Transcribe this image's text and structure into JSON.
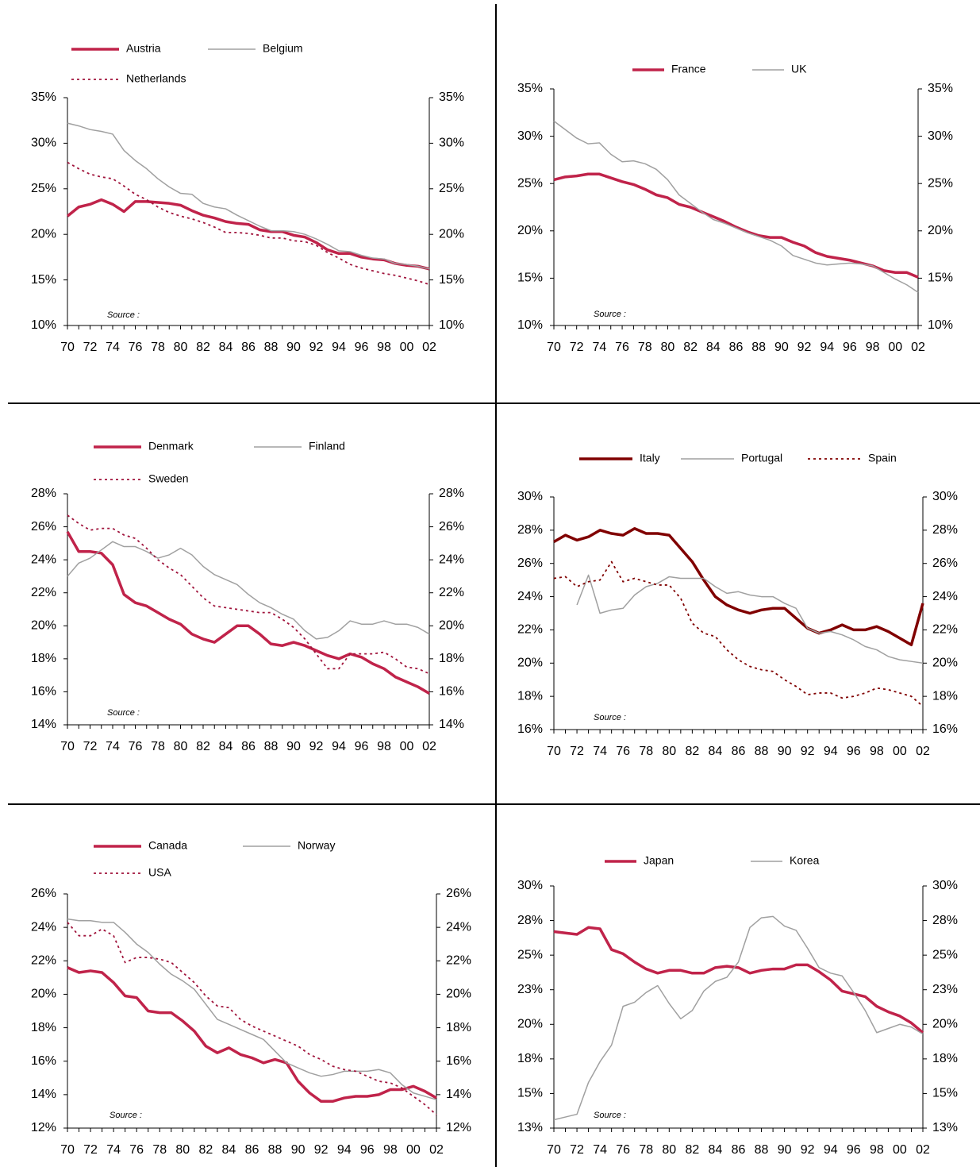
{
  "chart_data": [
    {
      "type": "line",
      "annotation": "Source :",
      "categories": [
        "70",
        null,
        "72",
        null,
        "74",
        null,
        "76",
        null,
        "78",
        null,
        "80",
        null,
        "82",
        null,
        "84",
        null,
        "86",
        null,
        "88",
        null,
        "90",
        null,
        "92",
        null,
        "94",
        null,
        "96",
        null,
        "98",
        null,
        "00",
        null,
        "02"
      ],
      "ylim": [
        10,
        35
      ],
      "yticks": [
        {
          "value": 10,
          "label": "10%"
        },
        {
          "value": 15,
          "label": "15%"
        },
        {
          "value": 20,
          "label": "20%"
        },
        {
          "value": 25,
          "label": "25%"
        },
        {
          "value": 30,
          "label": "30%"
        },
        {
          "value": 35,
          "label": "35%"
        }
      ],
      "series": [
        {
          "name": "Austria",
          "color": "#c0234a",
          "style": "thick",
          "values": [
            22,
            23,
            23.3,
            23.8,
            23.3,
            22.5,
            23.6,
            23.6,
            23.5,
            23.4,
            23.2,
            22.6,
            22.1,
            21.8,
            21.4,
            21.2,
            21.1,
            20.5,
            20.3,
            20.3,
            19.9,
            19.7,
            19.1,
            18.3,
            17.9,
            17.9,
            17.5,
            17.3,
            17.2,
            16.8,
            16.6,
            16.5,
            16.2
          ]
        },
        {
          "name": "Belgium",
          "color": "#a0a0a0",
          "style": "thin",
          "values": [
            32.2,
            31.9,
            31.5,
            31.3,
            31,
            29.2,
            28.1,
            27.2,
            26.1,
            25.2,
            24.5,
            24.4,
            23.4,
            23,
            22.8,
            22.1,
            21.5,
            20.9,
            20.4,
            20.4,
            20.3,
            20,
            19.5,
            18.9,
            18.2,
            18.1,
            17.7,
            17.4,
            17.3,
            16.8,
            16.7,
            16.5,
            16.2
          ]
        },
        {
          "name": "Netherlands",
          "color": "#a0143c",
          "style": "dotted",
          "values": [
            27.9,
            27.2,
            26.6,
            26.3,
            26.1,
            25.3,
            24.4,
            23.8,
            23,
            22.4,
            22,
            21.7,
            21.3,
            20.8,
            20.2,
            20.2,
            20.1,
            19.9,
            19.6,
            19.6,
            19.3,
            19.2,
            18.8,
            18,
            17.4,
            16.7,
            16.3,
            16,
            15.7,
            15.5,
            15.2,
            14.9,
            14.5
          ]
        }
      ]
    },
    {
      "type": "line",
      "annotation": "Source :",
      "categories": [
        "70",
        null,
        "72",
        null,
        "74",
        null,
        "76",
        null,
        "78",
        null,
        "80",
        null,
        "82",
        null,
        "84",
        null,
        "86",
        null,
        "88",
        null,
        "90",
        null,
        "92",
        null,
        "94",
        null,
        "96",
        null,
        "98",
        null,
        "00",
        null,
        "02"
      ],
      "ylim": [
        10,
        35
      ],
      "yticks": [
        {
          "value": 10,
          "label": "10%"
        },
        {
          "value": 15,
          "label": "15%"
        },
        {
          "value": 20,
          "label": "20%"
        },
        {
          "value": 25,
          "label": "25%"
        },
        {
          "value": 30,
          "label": "30%"
        },
        {
          "value": 35,
          "label": "35%"
        }
      ],
      "series": [
        {
          "name": "France",
          "color": "#c0234a",
          "style": "thick",
          "values": [
            25.4,
            25.7,
            25.8,
            26,
            26,
            25.6,
            25.2,
            24.9,
            24.4,
            23.8,
            23.5,
            22.8,
            22.5,
            22,
            21.5,
            21,
            20.4,
            19.9,
            19.5,
            19.3,
            19.3,
            18.8,
            18.4,
            17.7,
            17.3,
            17.1,
            16.9,
            16.6,
            16.3,
            15.8,
            15.6,
            15.6,
            15.1
          ]
        },
        {
          "name": "UK",
          "color": "#a0a0a0",
          "style": "thin",
          "values": [
            31.6,
            30.7,
            29.8,
            29.2,
            29.3,
            28.1,
            27.3,
            27.4,
            27.1,
            26.5,
            25.4,
            23.8,
            22.9,
            22,
            21.2,
            20.8,
            20.3,
            19.8,
            19.4,
            19,
            18.4,
            17.4,
            17,
            16.6,
            16.4,
            16.5,
            16.6,
            16.5,
            16.3,
            15.6,
            14.9,
            14.3,
            13.5
          ]
        }
      ]
    },
    {
      "type": "line",
      "annotation": "Source :",
      "categories": [
        "70",
        null,
        "72",
        null,
        "74",
        null,
        "76",
        null,
        "78",
        null,
        "80",
        null,
        "82",
        null,
        "84",
        null,
        "86",
        null,
        "88",
        null,
        "90",
        null,
        "92",
        null,
        "94",
        null,
        "96",
        null,
        "98",
        null,
        "00",
        null,
        "02"
      ],
      "ylim": [
        14,
        28
      ],
      "yticks": [
        {
          "value": 14,
          "label": "14%"
        },
        {
          "value": 16,
          "label": "16%"
        },
        {
          "value": 18,
          "label": "18%"
        },
        {
          "value": 20,
          "label": "20%"
        },
        {
          "value": 22,
          "label": "22%"
        },
        {
          "value": 24,
          "label": "24%"
        },
        {
          "value": 26,
          "label": "26%"
        },
        {
          "value": 28,
          "label": "28%"
        }
      ],
      "series": [
        {
          "name": "Denmark",
          "color": "#c0234a",
          "style": "thick",
          "values": [
            25.7,
            24.5,
            24.5,
            24.4,
            23.7,
            21.9,
            21.4,
            21.2,
            20.8,
            20.4,
            20.1,
            19.5,
            19.2,
            19,
            19.5,
            20,
            20,
            19.5,
            18.9,
            18.8,
            19,
            18.8,
            18.5,
            18.2,
            18,
            18.3,
            18.1,
            17.7,
            17.4,
            16.9,
            16.6,
            16.3,
            15.9
          ]
        },
        {
          "name": "Finland",
          "color": "#a0a0a0",
          "style": "thin",
          "values": [
            23,
            23.8,
            24.1,
            24.6,
            25.1,
            24.8,
            24.8,
            24.5,
            24.1,
            24.3,
            24.7,
            24.3,
            23.6,
            23.1,
            22.8,
            22.5,
            21.9,
            21.4,
            21.1,
            20.7,
            20.4,
            19.7,
            19.2,
            19.3,
            19.7,
            20.3,
            20.1,
            20.1,
            20.3,
            20.1,
            20.1,
            19.9,
            19.5
          ]
        },
        {
          "name": "Sweden",
          "color": "#a0143c",
          "style": "dotted",
          "values": [
            26.7,
            26.2,
            25.8,
            25.9,
            25.9,
            25.5,
            25.3,
            24.7,
            24,
            23.5,
            23.1,
            22.4,
            21.7,
            21.2,
            21.1,
            21,
            20.9,
            20.8,
            20.8,
            20.4,
            19.9,
            19.2,
            18.3,
            17.4,
            17.4,
            18.3,
            18.3,
            18.3,
            18.4,
            18,
            17.5,
            17.4,
            17.1
          ]
        }
      ]
    },
    {
      "type": "line",
      "annotation": "Source :",
      "categories": [
        "70",
        null,
        "72",
        null,
        "74",
        null,
        "76",
        null,
        "78",
        null,
        "80",
        null,
        "82",
        null,
        "84",
        null,
        "86",
        null,
        "88",
        null,
        "90",
        null,
        "92",
        null,
        "94",
        null,
        "96",
        null,
        "98",
        null,
        "00",
        null,
        "02"
      ],
      "ylim": [
        16,
        30
      ],
      "yticks": [
        {
          "value": 16,
          "label": "16%"
        },
        {
          "value": 18,
          "label": "18%"
        },
        {
          "value": 20,
          "label": "20%"
        },
        {
          "value": 22,
          "label": "22%"
        },
        {
          "value": 24,
          "label": "24%"
        },
        {
          "value": 26,
          "label": "26%"
        },
        {
          "value": 28,
          "label": "28%"
        },
        {
          "value": 30,
          "label": "30%"
        }
      ],
      "series": [
        {
          "name": "Italy",
          "color": "#800000",
          "style": "thick",
          "values": [
            27.3,
            27.7,
            27.4,
            27.6,
            28,
            27.8,
            27.7,
            28.1,
            27.8,
            27.8,
            27.7,
            26.9,
            26.1,
            25,
            24,
            23.5,
            23.2,
            23,
            23.2,
            23.3,
            23.3,
            22.7,
            22.1,
            21.8,
            22,
            22.3,
            22,
            22,
            22.2,
            21.9,
            21.5,
            21.1,
            23.6
          ]
        },
        {
          "name": "Portugal",
          "color": "#a0a0a0",
          "style": "thin",
          "values": [
            null,
            null,
            23.5,
            25.3,
            23,
            23.2,
            23.3,
            24.1,
            24.6,
            24.8,
            25.2,
            25.1,
            25.1,
            25.1,
            24.6,
            24.2,
            24.3,
            24.1,
            24,
            24,
            23.6,
            23.3,
            22.1,
            21.8,
            21.9,
            21.7,
            21.4,
            21,
            20.8,
            20.4,
            20.2,
            20.1,
            20
          ]
        },
        {
          "name": "Spain",
          "color": "#800000",
          "style": "dotted",
          "values": [
            25.1,
            25.2,
            24.6,
            24.9,
            25,
            26.1,
            24.9,
            25.1,
            24.9,
            24.7,
            24.7,
            23.9,
            22.4,
            21.8,
            21.6,
            20.8,
            20.2,
            19.8,
            19.6,
            19.5,
            19,
            18.6,
            18.1,
            18.2,
            18.2,
            17.9,
            18,
            18.2,
            18.5,
            18.4,
            18.2,
            18,
            17.4
          ]
        }
      ]
    },
    {
      "type": "line",
      "annotation": "Source :",
      "categories": [
        "70",
        null,
        "72",
        null,
        "74",
        null,
        "76",
        null,
        "78",
        null,
        "80",
        null,
        "82",
        null,
        "84",
        null,
        "86",
        null,
        "88",
        null,
        "90",
        null,
        "92",
        null,
        "94",
        null,
        "96",
        null,
        "98",
        null,
        "00",
        null,
        "02"
      ],
      "ylim": [
        12,
        26
      ],
      "yticks": [
        {
          "value": 12,
          "label": "12%"
        },
        {
          "value": 14,
          "label": "14%"
        },
        {
          "value": 16,
          "label": "16%"
        },
        {
          "value": 18,
          "label": "18%"
        },
        {
          "value": 20,
          "label": "20%"
        },
        {
          "value": 22,
          "label": "22%"
        },
        {
          "value": 24,
          "label": "24%"
        },
        {
          "value": 26,
          "label": "26%"
        }
      ],
      "series": [
        {
          "name": "Canada",
          "color": "#c0234a",
          "style": "thick",
          "values": [
            21.6,
            21.3,
            21.4,
            21.3,
            20.7,
            19.9,
            19.8,
            19,
            18.9,
            18.9,
            18.4,
            17.8,
            16.9,
            16.5,
            16.8,
            16.4,
            16.2,
            15.9,
            16.1,
            15.9,
            14.8,
            14.1,
            13.6,
            13.6,
            13.8,
            13.9,
            13.9,
            14,
            14.3,
            14.3,
            14.5,
            14.2,
            13.8
          ]
        },
        {
          "name": "Norway",
          "color": "#a0a0a0",
          "style": "thin",
          "values": [
            24.5,
            24.4,
            24.4,
            24.3,
            24.3,
            23.7,
            23,
            22.5,
            21.8,
            21.2,
            20.8,
            20.3,
            19.4,
            18.5,
            18.2,
            17.9,
            17.6,
            17.3,
            16.6,
            15.9,
            15.6,
            15.3,
            15.1,
            15.2,
            15.4,
            15.4,
            15.4,
            15.5,
            15.3,
            14.6,
            14.1,
            13.9,
            13.7
          ]
        },
        {
          "name": "USA",
          "color": "#a0143c",
          "style": "dotted",
          "values": [
            24.3,
            23.5,
            23.5,
            23.9,
            23.5,
            21.9,
            22.2,
            22.2,
            22.1,
            21.9,
            21.3,
            20.7,
            19.9,
            19.3,
            19.2,
            18.5,
            18.1,
            17.8,
            17.5,
            17.2,
            16.9,
            16.4,
            16.1,
            15.7,
            15.5,
            15.4,
            15.1,
            14.8,
            14.7,
            14.4,
            13.9,
            13.4,
            12.8
          ]
        }
      ]
    },
    {
      "type": "line",
      "annotation": "Source :",
      "categories": [
        "70",
        null,
        "72",
        null,
        "74",
        null,
        "76",
        null,
        "78",
        null,
        "80",
        null,
        "82",
        null,
        "84",
        null,
        "86",
        null,
        "88",
        null,
        "90",
        null,
        "92",
        null,
        "94",
        null,
        "96",
        null,
        "98",
        null,
        "00",
        null,
        "02"
      ],
      "ylim": [
        12.5,
        30
      ],
      "yticks": [
        {
          "value": 12.5,
          "label": "13%"
        },
        {
          "value": 15,
          "label": "15%"
        },
        {
          "value": 17.5,
          "label": "18%"
        },
        {
          "value": 20,
          "label": "20%"
        },
        {
          "value": 22.5,
          "label": "23%"
        },
        {
          "value": 25,
          "label": "25%"
        },
        {
          "value": 27.5,
          "label": "28%"
        },
        {
          "value": 30,
          "label": "30%"
        }
      ],
      "series": [
        {
          "name": "Japan",
          "color": "#c0234a",
          "style": "thick",
          "values": [
            26.7,
            26.6,
            26.5,
            27,
            26.9,
            25.4,
            25.1,
            24.5,
            24,
            23.7,
            23.9,
            23.9,
            23.7,
            23.7,
            24.1,
            24.2,
            24.1,
            23.7,
            23.9,
            24,
            24,
            24.3,
            24.3,
            23.8,
            23.2,
            22.4,
            22.2,
            22,
            21.3,
            20.9,
            20.6,
            20.1,
            19.4
          ]
        },
        {
          "name": "Korea",
          "color": "#a0a0a0",
          "style": "thin",
          "values": [
            13.1,
            13.3,
            13.5,
            15.8,
            17.3,
            18.5,
            21.3,
            21.6,
            22.3,
            22.8,
            21.5,
            20.4,
            21,
            22.4,
            23.1,
            23.4,
            24.5,
            27,
            27.7,
            27.8,
            27.1,
            26.8,
            25.5,
            24.1,
            23.7,
            23.5,
            22.3,
            21,
            19.4,
            19.7,
            20,
            19.8,
            19.3
          ]
        }
      ]
    }
  ]
}
